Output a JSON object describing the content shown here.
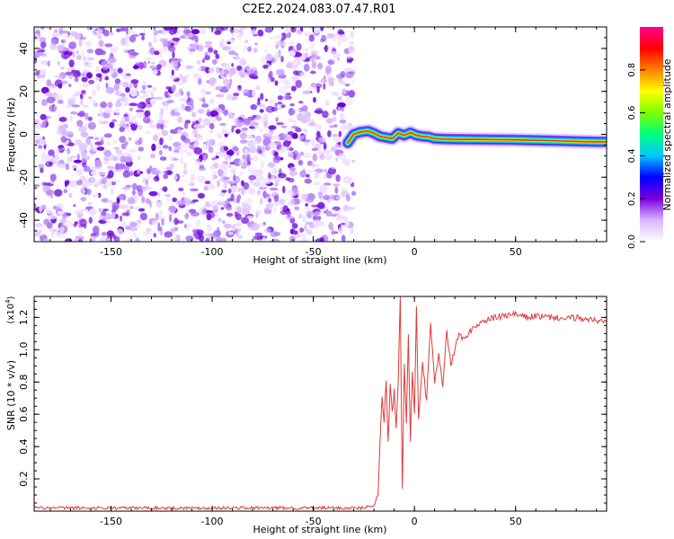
{
  "title": "C2E2.2024.083.07.47.R01",
  "colors": {
    "snr_line": "#e03a3a",
    "signal_ridge": "#ff2a2a",
    "noise": "#8a2be2"
  },
  "colorbar": {
    "label": "Normalized spectral amplitude",
    "ticks": [
      "0.0",
      "0.2",
      "0.4",
      "0.6",
      "0.8"
    ],
    "tick_values": [
      0.0,
      0.2,
      0.4,
      0.6,
      0.8
    ],
    "range": [
      0,
      1
    ],
    "stops": [
      "#ffffff",
      "#d9b6ff",
      "#7b00e0",
      "#0000ff",
      "#00c8ff",
      "#00ff80",
      "#7cff00",
      "#ffff00",
      "#ff8000",
      "#ff0000",
      "#ff0090"
    ]
  },
  "chart_data": [
    {
      "type": "heatmap",
      "title": "C2E2.2024.083.07.47.R01",
      "xlabel": "Height of straight line (km)",
      "ylabel": "Frequency (Hz)",
      "xlim": [
        -188,
        95
      ],
      "ylim": [
        -50,
        50
      ],
      "x_ticks": [
        -150,
        -100,
        -50,
        0,
        50
      ],
      "x_tick_labels": [
        "-150",
        "-100",
        "-50",
        "0",
        "50"
      ],
      "y_ticks": [
        -40,
        -20,
        0,
        20,
        40
      ],
      "y_tick_labels": [
        "-40",
        "-20",
        "0",
        "20",
        "40"
      ],
      "noise_region_x": [
        -188,
        -30
      ],
      "signal_ridge": {
        "x": [
          -33,
          -30,
          -27,
          -23,
          -20,
          -17,
          -14,
          -11,
          -8,
          -5,
          -2,
          1,
          4,
          7,
          10,
          15,
          20,
          30,
          40,
          50,
          60,
          70,
          80,
          90,
          95
        ],
        "y": [
          -4,
          0,
          1,
          1.5,
          0.5,
          -1,
          -1.5,
          -2,
          0.5,
          -0.5,
          0.8,
          -0.5,
          -1,
          -1.2,
          -2,
          -2.2,
          -2.3,
          -2.4,
          -2.5,
          -2.6,
          -2.8,
          -3,
          -3.3,
          -3.5,
          -3.5
        ]
      }
    },
    {
      "type": "line",
      "xlabel": "Height of straight line (km)",
      "ylabel": "SNR (10 * v/v)",
      "y_scale_label": "(x10",
      "y_scale_exp": "4",
      "xlim": [
        -188,
        95
      ],
      "ylim": [
        0,
        1.33
      ],
      "x_ticks": [
        -150,
        -100,
        -50,
        0,
        50
      ],
      "x_tick_labels": [
        "-150",
        "-100",
        "-50",
        "0",
        "50"
      ],
      "y_ticks": [
        0.2,
        0.4,
        0.6,
        0.8,
        1.0,
        1.2
      ],
      "y_tick_labels": [
        "0.2",
        "0.4",
        "0.6",
        "0.8",
        "1.0",
        "1.2"
      ],
      "series": [
        {
          "x": [
            -188,
            -150,
            -100,
            -50,
            -25,
            -20,
            -18,
            -17,
            -16,
            -15,
            -14,
            -13,
            -12,
            -11,
            -10,
            -9,
            -8,
            -7,
            -6,
            -5,
            -4,
            -3,
            -2,
            -1,
            0,
            1,
            2,
            4,
            6,
            8,
            10,
            12,
            14,
            16,
            18,
            20,
            22,
            25,
            28,
            30,
            35,
            40,
            45,
            50,
            55,
            60,
            65,
            70,
            75,
            80,
            85,
            90,
            95
          ],
          "y": [
            0.02,
            0.02,
            0.02,
            0.02,
            0.02,
            0.04,
            0.1,
            0.45,
            0.72,
            0.55,
            0.8,
            0.42,
            0.78,
            0.6,
            0.75,
            0.5,
            0.82,
            1.33,
            0.15,
            0.92,
            0.55,
            1.1,
            0.45,
            0.88,
            0.62,
            1.25,
            0.58,
            0.92,
            0.68,
            1.15,
            0.8,
            0.96,
            0.78,
            1.12,
            0.9,
            1.0,
            1.1,
            1.06,
            1.12,
            1.15,
            1.18,
            1.2,
            1.21,
            1.22,
            1.2,
            1.21,
            1.2,
            1.2,
            1.19,
            1.2,
            1.19,
            1.18,
            1.17
          ]
        }
      ]
    }
  ]
}
